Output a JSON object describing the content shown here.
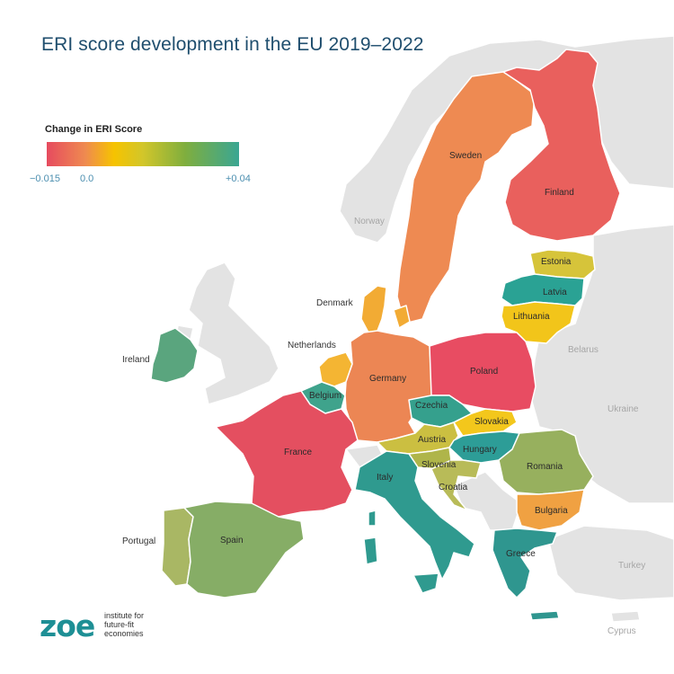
{
  "title": "ERI score development in the EU 2019–2022",
  "legend": {
    "title": "Change in ERI Score",
    "tick_min": "−0.015",
    "tick_zero": "0.0",
    "tick_max": "+0.04",
    "colors": [
      "#e64b5f",
      "#ef8a50",
      "#f6c300",
      "#d2c62a",
      "#7fae3e",
      "#3aa693"
    ]
  },
  "countries": {
    "sweden": {
      "name": "Sweden",
      "color": "#ee8a52"
    },
    "finland": {
      "name": "Finland",
      "color": "#e9605d"
    },
    "estonia": {
      "name": "Estonia",
      "color": "#d6c43a"
    },
    "latvia": {
      "name": "Latvia",
      "color": "#2aa294"
    },
    "lithuania": {
      "name": "Lithuania",
      "color": "#f2c51a"
    },
    "denmark": {
      "name": "Denmark",
      "color": "#f2ab34"
    },
    "ireland": {
      "name": "Ireland",
      "color": "#5aa57e"
    },
    "netherlands": {
      "name": "Netherlands",
      "color": "#f4b533"
    },
    "belgium": {
      "name": "Belgium",
      "color": "#3fa38c"
    },
    "germany": {
      "name": "Germany",
      "color": "#ec8654"
    },
    "poland": {
      "name": "Poland",
      "color": "#e84c62"
    },
    "czechia": {
      "name": "Czechia",
      "color": "#35a08d"
    },
    "slovakia": {
      "name": "Slovakia",
      "color": "#f3c71c"
    },
    "austria": {
      "name": "Austria",
      "color": "#cbbf41"
    },
    "hungary": {
      "name": "Hungary",
      "color": "#2d9d97"
    },
    "slovenia": {
      "name": "Slovenia",
      "color": "#afb54a"
    },
    "croatia": {
      "name": "Croatia",
      "color": "#b8bb58"
    },
    "france": {
      "name": "France",
      "color": "#e44f60"
    },
    "italy": {
      "name": "Italy",
      "color": "#2f9a8f"
    },
    "romania": {
      "name": "Romania",
      "color": "#97b05e"
    },
    "bulgaria": {
      "name": "Bulgaria",
      "color": "#f0a142"
    },
    "portugal": {
      "name": "Portugal",
      "color": "#a9b764"
    },
    "spain": {
      "name": "Spain",
      "color": "#86ad66"
    },
    "greece": {
      "name": "Greece",
      "color": "#2f968f"
    }
  },
  "non_eu": {
    "norway": "Norway",
    "belarus": "Belarus",
    "ukraine": "Ukraine",
    "turkey": "Turkey",
    "cyprus": "Cyprus"
  },
  "logo": {
    "mark": "zoe",
    "line1": "institute for",
    "line2": "future-fit",
    "line3": "economies"
  }
}
